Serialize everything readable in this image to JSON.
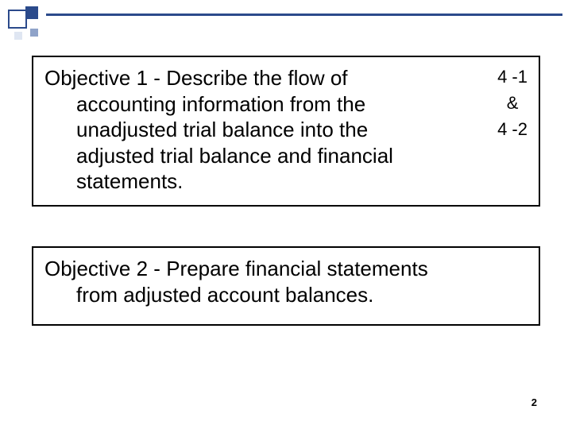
{
  "decor": {
    "accent_color": "#2b4a8b",
    "light_color": "#8fa3c9",
    "lighter_color": "#dfe6f2"
  },
  "objective1": {
    "label": "Objective 1",
    "separator": " - ",
    "lead": "Describe the flow of",
    "cont1": "accounting information from the",
    "cont2": "unadjusted trial balance into the",
    "cont3": "adjusted trial balance and financial",
    "cont4": "statements.",
    "refs": {
      "a": "4 -1",
      "amp": "&",
      "b": "4 -2"
    }
  },
  "objective2": {
    "label": "Objective 2",
    "separator": " - ",
    "lead": "Prepare financial statements",
    "cont1": "from adjusted account balances."
  },
  "page_number": "2"
}
